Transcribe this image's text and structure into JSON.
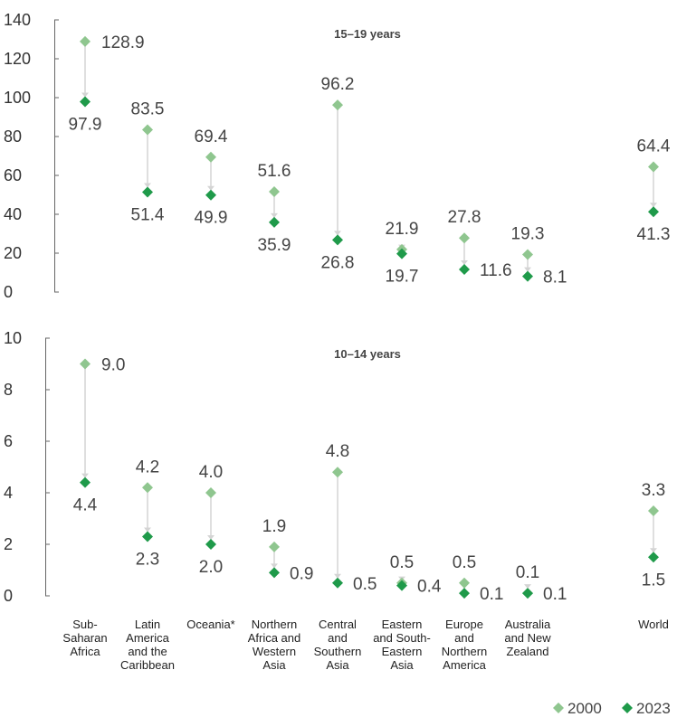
{
  "colors": {
    "series_2000": "#8fc68f",
    "series_2023": "#1f9a4a",
    "connector": "#d4d4d4",
    "axis": "#666666"
  },
  "legend": {
    "items": [
      {
        "label": "2000",
        "color": "#8fc68f",
        "icon": "diamond-icon"
      },
      {
        "label": "2023",
        "color": "#1f9a4a",
        "icon": "diamond-icon"
      }
    ]
  },
  "chart_data": [
    {
      "type": "scatter",
      "title": "15–19 years",
      "categories": [
        [
          "Sub-",
          "Saharan",
          "Africa"
        ],
        [
          "Latin",
          "America",
          "and the",
          "Caribbean"
        ],
        [
          "Oceania*"
        ],
        [
          "Northern",
          "Africa and",
          "Western",
          "Asia"
        ],
        [
          "Central",
          "and",
          "Southern",
          "Asia"
        ],
        [
          "Eastern",
          "and South-",
          "Eastern",
          "Asia"
        ],
        [
          "Europe",
          "and",
          "Northern",
          "America"
        ],
        [
          "Australia",
          "and New",
          "Zealand"
        ],
        [
          "World"
        ]
      ],
      "series": [
        {
          "name": "2000",
          "values": [
            128.9,
            83.5,
            69.4,
            51.6,
            96.2,
            21.9,
            27.8,
            19.3,
            64.4
          ]
        },
        {
          "name": "2023",
          "values": [
            97.9,
            51.4,
            49.9,
            35.9,
            26.8,
            19.7,
            11.6,
            8.1,
            41.3
          ]
        }
      ],
      "labels_2000": [
        "128.9",
        "83.5",
        "69.4",
        "51.6",
        "96.2",
        "21.9",
        "27.8",
        "19.3",
        "64.4"
      ],
      "labels_2023": [
        "97.9",
        "51.4",
        "49.9",
        "35.9",
        "26.8",
        "19.7",
        "11.6",
        "8.1",
        "41.3"
      ],
      "ylim": [
        0,
        140
      ],
      "yticks": [
        0,
        20,
        40,
        60,
        80,
        100,
        120,
        140
      ],
      "ytick_labels": [
        "0",
        "20",
        "40",
        "60",
        "80",
        "100",
        "120",
        "140"
      ]
    },
    {
      "type": "scatter",
      "title": "10–14 years",
      "categories": [
        [
          "Sub-",
          "Saharan",
          "Africa"
        ],
        [
          "Latin",
          "America",
          "and the",
          "Caribbean"
        ],
        [
          "Oceania*"
        ],
        [
          "Northern",
          "Africa and",
          "Western",
          "Asia"
        ],
        [
          "Central",
          "and",
          "Southern",
          "Asia"
        ],
        [
          "Eastern",
          "and South-",
          "Eastern",
          "Asia"
        ],
        [
          "Europe",
          "and",
          "Northern",
          "America"
        ],
        [
          "Australia",
          "and New",
          "Zealand"
        ],
        [
          "World"
        ]
      ],
      "series": [
        {
          "name": "2000",
          "values": [
            9.0,
            4.2,
            4.0,
            1.9,
            4.8,
            0.5,
            0.5,
            0.1,
            3.3
          ]
        },
        {
          "name": "2023",
          "values": [
            4.4,
            2.3,
            2.0,
            0.9,
            0.5,
            0.4,
            0.1,
            0.1,
            1.5
          ]
        }
      ],
      "labels_2000": [
        "9.0",
        "4.2",
        "4.0",
        "1.9",
        "4.8",
        "0.5",
        "0.5",
        "0.1",
        "3.3"
      ],
      "labels_2023": [
        "4.4",
        "2.3",
        "2.0",
        "0.9",
        "0.5",
        "0.4",
        "0.1",
        "0.1",
        "1.5"
      ],
      "ylim": [
        0,
        10
      ],
      "yticks": [
        0,
        2,
        4,
        6,
        8,
        10
      ],
      "ytick_labels": [
        "0",
        "2",
        "4",
        "6",
        "8",
        "10"
      ]
    }
  ]
}
